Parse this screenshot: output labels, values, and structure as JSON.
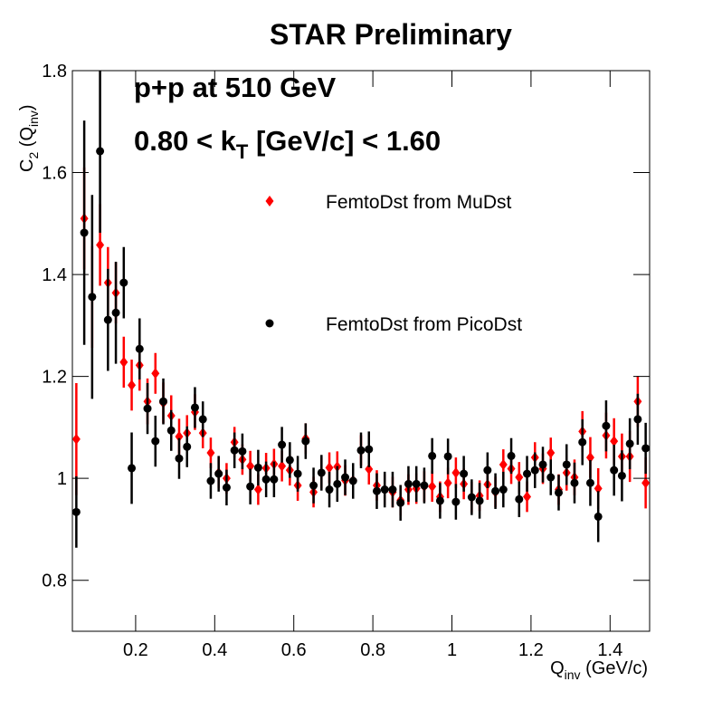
{
  "chart_data": {
    "type": "scatter",
    "title": "STAR Preliminary",
    "annotations": [
      [
        "p+p at 510 GeV"
      ],
      [
        "0.80 < k",
        "T",
        " [GeV/c] < 1.60"
      ]
    ],
    "x_label": [
      "Q",
      "inv",
      " (GeV/c)"
    ],
    "y_label": [
      "C",
      "2",
      " (Q",
      "inv",
      ")"
    ],
    "xlim": [
      0.04,
      1.5
    ],
    "ylim": [
      0.7,
      1.8
    ],
    "xticks": [
      0.2,
      0.4,
      0.6,
      0.8,
      1,
      1.2,
      1.4
    ],
    "yticks": [
      0.8,
      1,
      1.2,
      1.4,
      1.6,
      1.8
    ],
    "x": [
      0.05,
      0.07,
      0.09,
      0.11,
      0.13,
      0.15,
      0.17,
      0.19,
      0.21,
      0.23,
      0.25,
      0.27,
      0.29,
      0.31,
      0.33,
      0.35,
      0.37,
      0.39,
      0.41,
      0.43,
      0.45,
      0.47,
      0.49,
      0.51,
      0.53,
      0.55,
      0.57,
      0.59,
      0.61,
      0.63,
      0.65,
      0.67,
      0.69,
      0.71,
      0.73,
      0.75,
      0.77,
      0.79,
      0.81,
      0.83,
      0.85,
      0.87,
      0.89,
      0.91,
      0.93,
      0.95,
      0.97,
      0.99,
      1.01,
      1.03,
      1.05,
      1.07,
      1.09,
      1.11,
      1.13,
      1.15,
      1.17,
      1.19,
      1.21,
      1.23,
      1.25,
      1.27,
      1.29,
      1.31,
      1.33,
      1.35,
      1.37,
      1.39,
      1.41,
      1.43,
      1.45,
      1.47,
      1.49
    ],
    "series": [
      {
        "name": "FemtoDst from MuDst",
        "color": "#ff0000",
        "marker": "diamond",
        "values": [
          1.077,
          1.51,
          1.356,
          1.458,
          1.384,
          1.364,
          1.228,
          1.183,
          1.222,
          1.151,
          1.206,
          1.148,
          1.123,
          1.082,
          1.089,
          1.13,
          1.089,
          1.05,
          1.011,
          1.0,
          1.071,
          1.037,
          1.024,
          0.978,
          1.02,
          1.028,
          1.024,
          1.016,
          0.986,
          1.078,
          0.973,
          1.011,
          1.021,
          1.023,
          0.996,
          0.996,
          1.055,
          1.018,
          0.986,
          0.978,
          0.973,
          0.957,
          0.978,
          0.98,
          0.984,
          0.984,
          0.964,
          0.991,
          1.011,
          0.989,
          0.963,
          0.966,
          0.988,
          0.973,
          1.027,
          1.019,
          1.002,
          0.964,
          1.041,
          1.019,
          1.05,
          0.978,
          1.011,
          1.002,
          1.092,
          1.041,
          0.98,
          1.084,
          1.073,
          1.043,
          1.043,
          1.151,
          0.991
        ],
        "errors": [
          0.11,
          0.1,
          0.1,
          0.08,
          0.07,
          0.06,
          0.05,
          0.05,
          0.05,
          0.045,
          0.04,
          0.04,
          0.04,
          0.035,
          0.035,
          0.035,
          0.03,
          0.03,
          0.03,
          0.03,
          0.03,
          0.03,
          0.03,
          0.03,
          0.03,
          0.03,
          0.03,
          0.03,
          0.03,
          0.03,
          0.03,
          0.03,
          0.03,
          0.03,
          0.03,
          0.03,
          0.03,
          0.03,
          0.03,
          0.03,
          0.03,
          0.03,
          0.03,
          0.03,
          0.03,
          0.03,
          0.03,
          0.03,
          0.03,
          0.03,
          0.03,
          0.03,
          0.03,
          0.03,
          0.03,
          0.03,
          0.03,
          0.03,
          0.03,
          0.03,
          0.03,
          0.03,
          0.035,
          0.035,
          0.04,
          0.04,
          0.04,
          0.045,
          0.045,
          0.045,
          0.05,
          0.05,
          0.05
        ]
      },
      {
        "name": "FemtoDst from PicoDst",
        "color": "#000000",
        "marker": "circle",
        "values": [
          0.934,
          1.482,
          1.356,
          1.642,
          1.311,
          1.325,
          1.384,
          1.02,
          1.254,
          1.137,
          1.073,
          1.151,
          1.094,
          1.039,
          1.062,
          1.139,
          1.116,
          0.995,
          1.009,
          0.982,
          1.055,
          1.053,
          0.984,
          1.021,
          0.998,
          0.998,
          1.066,
          1.036,
          1.009,
          1.073,
          0.986,
          1.011,
          0.978,
          0.989,
          1.002,
          0.995,
          1.055,
          1.057,
          0.975,
          0.978,
          0.978,
          0.952,
          0.989,
          0.989,
          0.986,
          1.044,
          0.956,
          1.043,
          0.954,
          1.009,
          0.963,
          0.956,
          1.016,
          0.975,
          0.978,
          1.044,
          0.959,
          1.009,
          1.016,
          1.027,
          1.002,
          0.972,
          1.027,
          0.991,
          1.071,
          0.991,
          0.925,
          1.103,
          1.016,
          1.005,
          1.068,
          1.116,
          1.059
        ],
        "errors": [
          0.07,
          0.22,
          0.2,
          0.16,
          0.1,
          0.1,
          0.07,
          0.07,
          0.06,
          0.05,
          0.05,
          0.045,
          0.04,
          0.04,
          0.04,
          0.04,
          0.035,
          0.035,
          0.035,
          0.035,
          0.035,
          0.035,
          0.035,
          0.035,
          0.035,
          0.035,
          0.035,
          0.035,
          0.035,
          0.035,
          0.035,
          0.035,
          0.035,
          0.035,
          0.035,
          0.035,
          0.035,
          0.035,
          0.035,
          0.035,
          0.035,
          0.035,
          0.035,
          0.035,
          0.035,
          0.035,
          0.035,
          0.035,
          0.035,
          0.035,
          0.035,
          0.035,
          0.035,
          0.035,
          0.035,
          0.035,
          0.035,
          0.035,
          0.035,
          0.035,
          0.035,
          0.035,
          0.04,
          0.04,
          0.045,
          0.045,
          0.05,
          0.05,
          0.05,
          0.05,
          0.05,
          0.05,
          0.05
        ]
      }
    ]
  }
}
